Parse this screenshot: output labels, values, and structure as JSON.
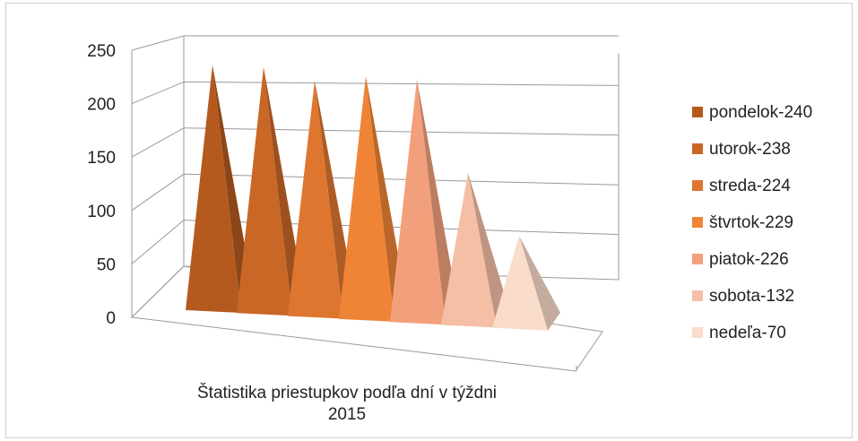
{
  "chart_data": {
    "type": "bar",
    "style": "3d-cone",
    "xlabel": "Štatistika priestupkov podľa dní v týždni",
    "xlabel_line2": "2015",
    "ylim": [
      0,
      250
    ],
    "yticks": [
      "0",
      "50",
      "100",
      "150",
      "200",
      "250"
    ],
    "grid": true,
    "legend_position": "right",
    "series": [
      {
        "name": "pondelok-240",
        "value": 240,
        "color": "#b45a1f"
      },
      {
        "name": "utorok-238",
        "value": 238,
        "color": "#c96726"
      },
      {
        "name": "streda-224",
        "value": 224,
        "color": "#de7630"
      },
      {
        "name": "štvrtok-229",
        "value": 229,
        "color": "#f08436"
      },
      {
        "name": "piatok-226",
        "value": 226,
        "color": "#f2a07c"
      },
      {
        "name": "sobota-132",
        "value": 132,
        "color": "#f5bfa5"
      },
      {
        "name": "nedeľa-70",
        "value": 70,
        "color": "#fadccb"
      }
    ]
  }
}
